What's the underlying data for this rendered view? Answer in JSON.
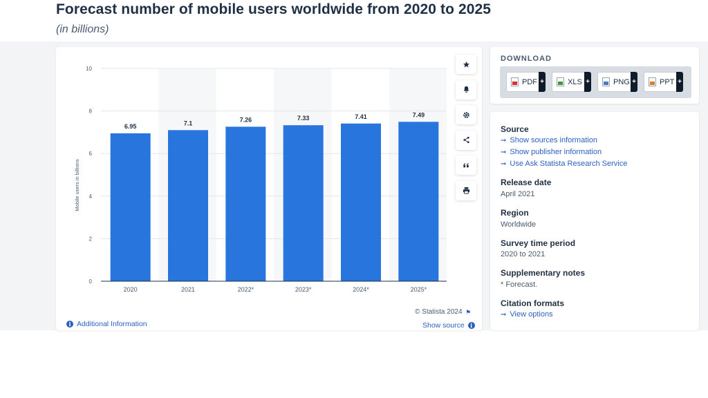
{
  "header": {
    "title": "Forecast number of mobile users worldwide from 2020 to 2025",
    "subtitle": "(in billions)"
  },
  "chart_data": {
    "type": "bar",
    "categories": [
      "2020",
      "2021",
      "2022*",
      "2023*",
      "2024*",
      "2025*"
    ],
    "values": [
      6.95,
      7.1,
      7.26,
      7.33,
      7.41,
      7.49
    ],
    "data_labels": [
      "6.95",
      "7.1",
      "7.26",
      "7.33",
      "7.41",
      "7.49"
    ],
    "ylabel": "Mobile users in billions",
    "xlabel": "",
    "ylim": [
      0,
      10
    ],
    "y_ticks": [
      "0",
      "2",
      "4",
      "6",
      "8",
      "10"
    ],
    "grid": true,
    "bar_color": "#2876dd"
  },
  "chart_footer": {
    "copyright": "© Statista 2024",
    "additional_info": "Additional Information",
    "show_source": "Show source"
  },
  "toolbar": {
    "icons": [
      "star-icon",
      "bell-icon",
      "gear-icon",
      "share-icon",
      "quote-icon",
      "print-icon"
    ]
  },
  "download": {
    "title": "DOWNLOAD",
    "buttons": [
      {
        "label": "PDF",
        "color": "#d9342b"
      },
      {
        "label": "XLS",
        "color": "#3a9a3a"
      },
      {
        "label": "PNG",
        "color": "#4a78c8"
      },
      {
        "label": "PPT",
        "color": "#e07a2b"
      }
    ],
    "plus": "+"
  },
  "info": {
    "source_heading": "Source",
    "source_links": [
      "Show sources information",
      "Show publisher information",
      "Use Ask Statista Research Service"
    ],
    "release_heading": "Release date",
    "release_value": "April 2021",
    "region_heading": "Region",
    "region_value": "Worldwide",
    "survey_heading": "Survey time period",
    "survey_value": "2020 to 2021",
    "notes_heading": "Supplementary notes",
    "notes_value": "* Forecast.",
    "citation_heading": "Citation formats",
    "citation_link": "View options"
  },
  "colors": {
    "accent": "#2a5fc0",
    "title": "#1f2f44"
  }
}
